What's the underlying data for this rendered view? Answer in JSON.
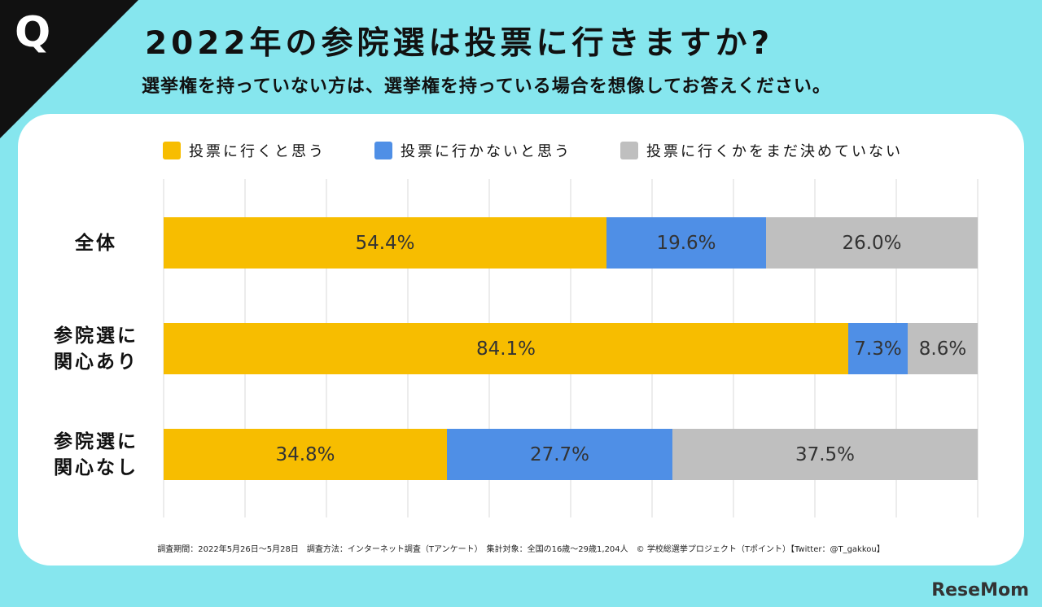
{
  "badge": "Q",
  "footnote": "調査期間：2022年5月26日～5月28日　調査方法：インターネット調査（Tアンケート）　集計対象：全国の16歳～29歳1,204人　© 学校総選挙プロジェクト（Tポイント）【Twitter：@T_gakkou】",
  "logo": "ReseMom",
  "chart_data": {
    "type": "stacked-barh",
    "title": "2022年の参院選は投票に行きますか?",
    "subtitle": "選挙権を持っていない方は、選挙権を持っている場合を想像してお答えください。",
    "categories": [
      "全体",
      "参院選に関心あり",
      "参院選に関心なし"
    ],
    "series": [
      {
        "name": "投票に行くと思う",
        "color": "#f7bd00",
        "values": [
          54.4,
          84.1,
          34.8
        ],
        "value_labels": [
          "54.4%",
          "84.1%",
          "34.8%"
        ]
      },
      {
        "name": "投票に行かないと思う",
        "color": "#4f8fe6",
        "values": [
          19.6,
          7.3,
          27.7
        ],
        "value_labels": [
          "19.6%",
          "7.3%",
          "27.7%"
        ]
      },
      {
        "name": "投票に行くかをまだ決めていない",
        "color": "#bfbfbf",
        "values": [
          26.0,
          8.6,
          37.5
        ],
        "value_labels": [
          "26.0%",
          "8.6%",
          "37.5%"
        ]
      }
    ],
    "xlim": [
      0,
      100
    ],
    "xticks": [
      0,
      10,
      20,
      30,
      40,
      50,
      60,
      70,
      80,
      90,
      100
    ],
    "grid": true,
    "legend": "top"
  }
}
